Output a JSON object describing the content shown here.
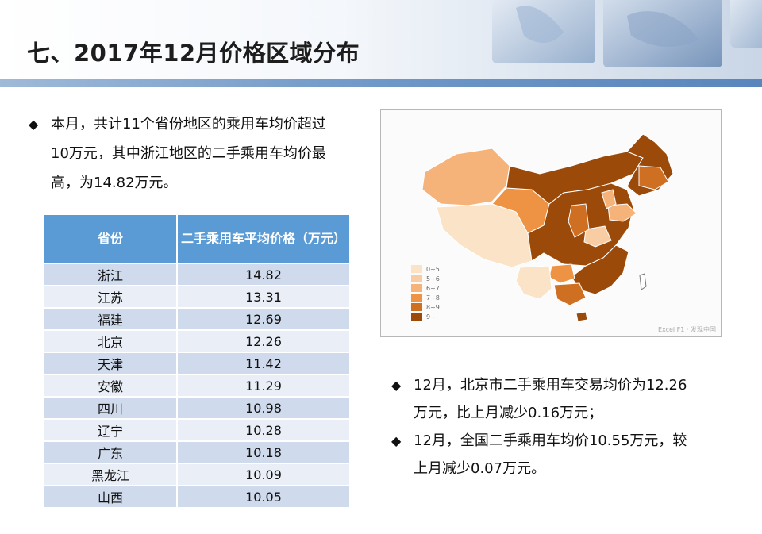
{
  "title": "七、2017年12月价格区域分布",
  "bullet_mark": "◆",
  "intro_text": "本月，共计11个省份地区的乘用车均价超过10万元，其中浙江地区的二手乘用车均价最高，为14.82万元。",
  "table": {
    "headers": [
      "省份",
      "二手乘用车平均价格（万元）"
    ],
    "rows": [
      {
        "province": "浙江",
        "price": "14.82"
      },
      {
        "province": "江苏",
        "price": "13.31"
      },
      {
        "province": "福建",
        "price": "12.69"
      },
      {
        "province": "北京",
        "price": "12.26"
      },
      {
        "province": "天津",
        "price": "11.42"
      },
      {
        "province": "安徽",
        "price": "11.29"
      },
      {
        "province": "四川",
        "price": "10.98"
      },
      {
        "province": "辽宁",
        "price": "10.28"
      },
      {
        "province": "广东",
        "price": "10.18"
      },
      {
        "province": "黑龙江",
        "price": "10.09"
      },
      {
        "province": "山西",
        "price": "10.05"
      }
    ]
  },
  "map": {
    "legend": [
      {
        "label": "0~5",
        "color": "#fbe3c8"
      },
      {
        "label": "5~6",
        "color": "#f8cda3"
      },
      {
        "label": "6~7",
        "color": "#f5b279"
      },
      {
        "label": "7~8",
        "color": "#ee9244"
      },
      {
        "label": "8~9",
        "color": "#cf6f22"
      },
      {
        "label": "9~",
        "color": "#9c4a0a"
      }
    ],
    "watermark": "Excel F1 · 发现中国"
  },
  "right_bullets": [
    "12月，北京市二手乘用车交易均价为12.26万元，比上月减少0.16万元；",
    "12月，全国二手乘用车均价10.55万元，较上月减少0.07万元。"
  ]
}
